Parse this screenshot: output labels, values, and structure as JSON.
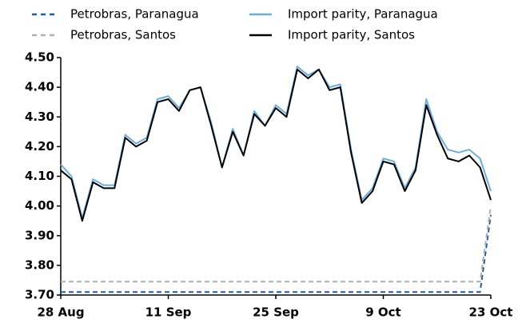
{
  "chart_data": {
    "type": "line",
    "categories": [
      "28 Aug",
      null,
      null,
      null,
      null,
      null,
      null,
      null,
      null,
      null,
      "11 Sep",
      null,
      null,
      null,
      null,
      null,
      null,
      null,
      null,
      null,
      "25 Sep",
      null,
      null,
      null,
      null,
      null,
      null,
      null,
      null,
      null,
      "9 Oct",
      null,
      null,
      null,
      null,
      null,
      null,
      null,
      null,
      null,
      "23 Oct"
    ],
    "series": [
      {
        "name": "Petrobras, Paranagua",
        "color": "#1f5fa6",
        "dashed": true,
        "values": [
          3.71,
          3.71,
          3.71,
          3.71,
          3.71,
          3.71,
          3.71,
          3.71,
          3.71,
          3.71,
          3.71,
          3.71,
          3.71,
          3.71,
          3.71,
          3.71,
          3.71,
          3.71,
          3.71,
          3.71,
          3.71,
          3.71,
          3.71,
          3.71,
          3.71,
          3.71,
          3.71,
          3.71,
          3.71,
          3.71,
          3.71,
          3.71,
          3.71,
          3.71,
          3.71,
          3.71,
          3.71,
          3.71,
          3.71,
          3.71,
          3.97
        ]
      },
      {
        "name": "Petrobras, Santos",
        "color": "#b0b0b0",
        "dashed": true,
        "values": [
          3.745,
          3.745,
          3.745,
          3.745,
          3.745,
          3.745,
          3.745,
          3.745,
          3.745,
          3.745,
          3.745,
          3.745,
          3.745,
          3.745,
          3.745,
          3.745,
          3.745,
          3.745,
          3.745,
          3.745,
          3.745,
          3.745,
          3.745,
          3.745,
          3.745,
          3.745,
          3.745,
          3.745,
          3.745,
          3.745,
          3.745,
          3.745,
          3.745,
          3.745,
          3.745,
          3.745,
          3.745,
          3.745,
          3.745,
          3.745,
          4.0
        ]
      },
      {
        "name": "Import parity, Paranagua",
        "color": "#6aaee0",
        "dashed": false,
        "values": [
          4.14,
          4.1,
          3.96,
          4.09,
          4.07,
          4.07,
          4.24,
          4.21,
          4.23,
          4.36,
          4.37,
          4.33,
          4.39,
          4.4,
          4.28,
          4.13,
          4.26,
          4.17,
          4.32,
          4.27,
          4.34,
          4.31,
          4.47,
          4.44,
          4.46,
          4.4,
          4.41,
          4.19,
          4.02,
          4.06,
          4.16,
          4.15,
          4.06,
          4.13,
          4.36,
          4.25,
          4.19,
          4.18,
          4.19,
          4.16,
          4.05
        ]
      },
      {
        "name": "Import parity, Santos",
        "color": "#000000",
        "dashed": false,
        "values": [
          4.12,
          4.09,
          3.95,
          4.08,
          4.06,
          4.06,
          4.23,
          4.2,
          4.22,
          4.35,
          4.36,
          4.32,
          4.39,
          4.4,
          4.27,
          4.13,
          4.25,
          4.17,
          4.31,
          4.27,
          4.33,
          4.3,
          4.46,
          4.43,
          4.46,
          4.39,
          4.4,
          4.18,
          4.01,
          4.05,
          4.15,
          4.14,
          4.05,
          4.12,
          4.34,
          4.24,
          4.16,
          4.15,
          4.17,
          4.13,
          4.02
        ]
      }
    ],
    "ylim": [
      3.7,
      4.5
    ],
    "yticks": [
      {
        "value": 3.7,
        "label": "3.70"
      },
      {
        "value": 3.8,
        "label": "3.80"
      },
      {
        "value": 3.9,
        "label": "3.90"
      },
      {
        "value": 4.0,
        "label": "4.00"
      },
      {
        "value": 4.1,
        "label": "4.10"
      },
      {
        "value": 4.2,
        "label": "4.20"
      },
      {
        "value": 4.3,
        "label": "4.30"
      },
      {
        "value": 4.4,
        "label": "4.40"
      },
      {
        "value": 4.5,
        "label": "4.50"
      }
    ]
  }
}
